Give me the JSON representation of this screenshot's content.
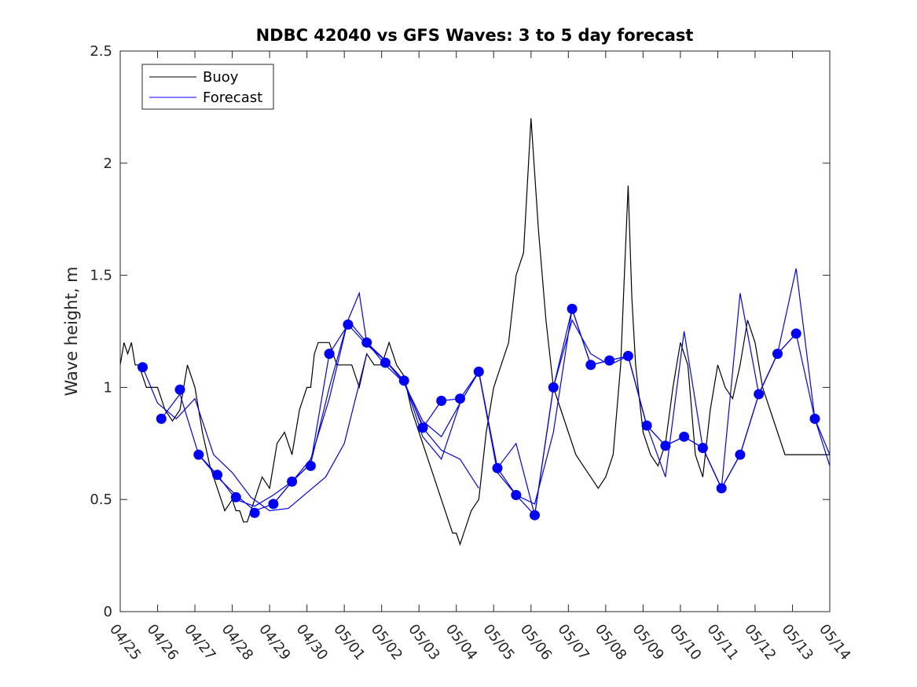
{
  "chart_data": {
    "type": "line",
    "title": "NDBC 42040 vs GFS Waves: 3 to 5 day forecast",
    "xlabel": "",
    "ylabel": "Wave height, m",
    "x_tick_labels": [
      "04/25",
      "04/26",
      "04/27",
      "04/28",
      "04/29",
      "04/30",
      "05/01",
      "05/02",
      "05/03",
      "05/04",
      "05/05",
      "05/06",
      "05/07",
      "05/08",
      "05/09",
      "05/10",
      "05/11",
      "05/12",
      "05/13",
      "05/14"
    ],
    "y_tick_labels": [
      "0",
      "0.5",
      "1",
      "1.5",
      "2",
      "2.5"
    ],
    "xlim": [
      0,
      19
    ],
    "ylim": [
      0,
      2.5
    ],
    "grid": false,
    "legend_position": "top-left",
    "colors": {
      "buoy": "#000000",
      "forecast": "#0000ff"
    },
    "series": [
      {
        "name": "Buoy",
        "x": [
          0.0,
          0.1,
          0.2,
          0.3,
          0.4,
          0.5,
          0.6,
          0.7,
          0.8,
          0.9,
          1.0,
          1.2,
          1.4,
          1.6,
          1.8,
          2.0,
          2.2,
          2.4,
          2.6,
          2.8,
          3.0,
          3.1,
          3.2,
          3.3,
          3.4,
          3.6,
          3.8,
          4.0,
          4.2,
          4.4,
          4.6,
          4.8,
          5.0,
          5.1,
          5.2,
          5.3,
          5.4,
          5.6,
          5.8,
          6.0,
          6.2,
          6.4,
          6.6,
          6.8,
          7.0,
          7.2,
          7.4,
          7.6,
          7.8,
          8.0,
          8.2,
          8.4,
          8.6,
          8.8,
          8.9,
          9.0,
          9.1,
          9.2,
          9.4,
          9.6,
          9.8,
          10.0,
          10.2,
          10.4,
          10.6,
          10.8,
          11.0,
          11.2,
          11.4,
          11.6,
          11.8,
          12.0,
          12.2,
          12.4,
          12.6,
          12.8,
          13.0,
          13.2,
          13.4,
          13.5,
          13.6,
          13.7,
          13.8,
          14.0,
          14.2,
          14.4,
          14.6,
          14.8,
          15.0,
          15.2,
          15.4,
          15.6,
          15.8,
          15.9,
          16.0,
          16.1,
          16.2,
          16.4,
          16.6,
          16.8,
          17.0,
          17.2,
          17.4,
          17.6,
          17.8,
          18.0,
          18.2,
          18.4,
          18.6,
          18.8,
          19.0
        ],
        "y": [
          1.1,
          1.2,
          1.15,
          1.2,
          1.1,
          1.1,
          1.05,
          1.0,
          1.0,
          1.0,
          1.0,
          0.9,
          0.85,
          0.9,
          1.1,
          1.0,
          0.8,
          0.65,
          0.55,
          0.45,
          0.5,
          0.45,
          0.45,
          0.4,
          0.4,
          0.5,
          0.6,
          0.55,
          0.75,
          0.8,
          0.7,
          0.9,
          1.0,
          1.0,
          1.15,
          1.2,
          1.2,
          1.2,
          1.1,
          1.1,
          1.1,
          1.0,
          1.15,
          1.1,
          1.1,
          1.2,
          1.1,
          1.05,
          0.9,
          0.8,
          0.7,
          0.6,
          0.5,
          0.4,
          0.35,
          0.35,
          0.3,
          0.35,
          0.45,
          0.5,
          0.8,
          1.0,
          1.1,
          1.2,
          1.5,
          1.6,
          2.2,
          1.7,
          1.3,
          1.0,
          0.9,
          0.8,
          0.7,
          0.65,
          0.6,
          0.55,
          0.6,
          0.7,
          1.1,
          1.5,
          1.9,
          1.4,
          1.1,
          0.8,
          0.7,
          0.65,
          0.75,
          1.0,
          1.2,
          1.1,
          0.7,
          0.6,
          0.9,
          1.0,
          1.1,
          1.05,
          1.0,
          0.95,
          1.1,
          1.3,
          1.2,
          1.0,
          0.9,
          0.8,
          0.7,
          0.7,
          0.7,
          0.7,
          0.7,
          0.7,
          0.7
        ]
      },
      {
        "name": "Forecast",
        "markers": {
          "x": [
            0.6,
            1.1,
            1.6,
            2.1,
            2.6,
            3.1,
            3.6,
            4.1,
            4.6,
            5.1,
            5.6,
            6.1,
            6.6,
            7.1,
            7.6,
            8.1,
            8.6,
            9.1,
            9.6,
            10.1,
            10.6,
            11.1,
            11.6,
            12.1,
            12.6,
            13.1,
            13.6,
            14.1,
            14.6,
            15.1,
            15.6,
            16.1,
            16.6,
            17.1,
            17.6,
            18.1,
            18.6
          ],
          "y": [
            1.09,
            0.86,
            0.99,
            0.7,
            0.61,
            0.51,
            0.44,
            0.48,
            0.58,
            0.65,
            1.15,
            1.28,
            1.2,
            1.11,
            1.03,
            0.82,
            0.94,
            0.95,
            1.07,
            0.64,
            0.52,
            0.43,
            1.0,
            1.35,
            1.1,
            1.12,
            1.14,
            0.83,
            0.74,
            0.78,
            0.73,
            0.55,
            0.7,
            0.97,
            1.15,
            1.24,
            0.86
          ]
        },
        "runs": [
          {
            "x": [
              0.6,
              1.0,
              1.5,
              2.0,
              2.5,
              3.0,
              3.5,
              4.0,
              4.5,
              5.0,
              5.5,
              6.0,
              6.3,
              6.6
            ],
            "y": [
              1.09,
              0.93,
              0.86,
              0.95,
              0.7,
              0.62,
              0.51,
              0.45,
              0.46,
              0.53,
              0.6,
              0.75,
              0.95,
              1.15
            ]
          },
          {
            "x": [
              1.1,
              1.6,
              2.1,
              2.6,
              3.1,
              3.6,
              4.1,
              4.6,
              5.1,
              5.6,
              6.1,
              6.6,
              7.1,
              7.6,
              8.1
            ],
            "y": [
              0.86,
              0.97,
              0.7,
              0.6,
              0.52,
              0.45,
              0.48,
              0.58,
              0.66,
              1.15,
              1.28,
              1.19,
              1.12,
              1.02,
              0.83
            ]
          },
          {
            "x": [
              2.1,
              2.6,
              3.1,
              3.6,
              4.1,
              4.6,
              5.1,
              5.6,
              6.1,
              6.4,
              6.6,
              7.1,
              7.6,
              8.1,
              8.6,
              9.1,
              9.6
            ],
            "y": [
              0.7,
              0.61,
              0.5,
              0.47,
              0.52,
              0.58,
              0.66,
              1.0,
              1.3,
              1.42,
              1.2,
              1.12,
              1.03,
              0.82,
              0.72,
              0.68,
              0.55
            ]
          },
          {
            "x": [
              4.1,
              4.6,
              5.1,
              5.6,
              6.1,
              6.6,
              7.1,
              7.6,
              8.1,
              8.6,
              9.1,
              9.6,
              10.1
            ],
            "y": [
              0.48,
              0.58,
              0.68,
              0.95,
              1.3,
              1.2,
              1.1,
              1.02,
              0.85,
              0.78,
              0.93,
              1.07,
              0.64
            ]
          },
          {
            "x": [
              6.6,
              7.1,
              7.6,
              8.1,
              8.6,
              9.1,
              9.6,
              10.1,
              10.6,
              11.1,
              11.6,
              12.1
            ],
            "y": [
              1.2,
              1.12,
              1.03,
              0.78,
              0.68,
              0.93,
              1.07,
              0.62,
              0.52,
              0.48,
              0.8,
              1.35
            ]
          },
          {
            "x": [
              8.1,
              8.6,
              9.1,
              9.6,
              10.1,
              10.6,
              11.1,
              11.6,
              12.1,
              12.6,
              13.1,
              13.6,
              14.1
            ],
            "y": [
              0.82,
              0.94,
              0.95,
              1.07,
              0.64,
              0.75,
              0.43,
              1.0,
              1.35,
              1.1,
              1.12,
              1.14,
              0.83
            ]
          },
          {
            "x": [
              9.6,
              10.1,
              10.6,
              11.1,
              11.6,
              12.1,
              12.6,
              13.1,
              13.6,
              14.1,
              14.6,
              15.1,
              15.6
            ],
            "y": [
              1.07,
              0.64,
              0.52,
              0.43,
              1.0,
              1.3,
              1.15,
              1.1,
              1.14,
              0.83,
              0.6,
              1.25,
              0.73
            ]
          },
          {
            "x": [
              12.1,
              12.6,
              13.1,
              13.6,
              14.1,
              14.6,
              15.1,
              15.6,
              16.1,
              16.6,
              17.1,
              17.6,
              18.1
            ],
            "y": [
              1.35,
              1.1,
              1.12,
              1.14,
              0.83,
              0.74,
              0.78,
              0.73,
              0.55,
              1.42,
              0.97,
              1.15,
              1.24
            ]
          },
          {
            "x": [
              14.1,
              14.6,
              15.1,
              15.6,
              16.1,
              16.6,
              17.1,
              17.6,
              18.1,
              18.6,
              19.0
            ],
            "y": [
              0.83,
              0.74,
              0.78,
              0.73,
              0.55,
              0.7,
              0.97,
              1.15,
              1.53,
              0.86,
              0.65
            ]
          },
          {
            "x": [
              15.6,
              16.1,
              16.6,
              17.1,
              17.6,
              18.1,
              18.6,
              19.0
            ],
            "y": [
              0.73,
              0.55,
              0.7,
              0.97,
              1.15,
              1.24,
              0.86,
              0.7
            ]
          }
        ]
      }
    ]
  }
}
